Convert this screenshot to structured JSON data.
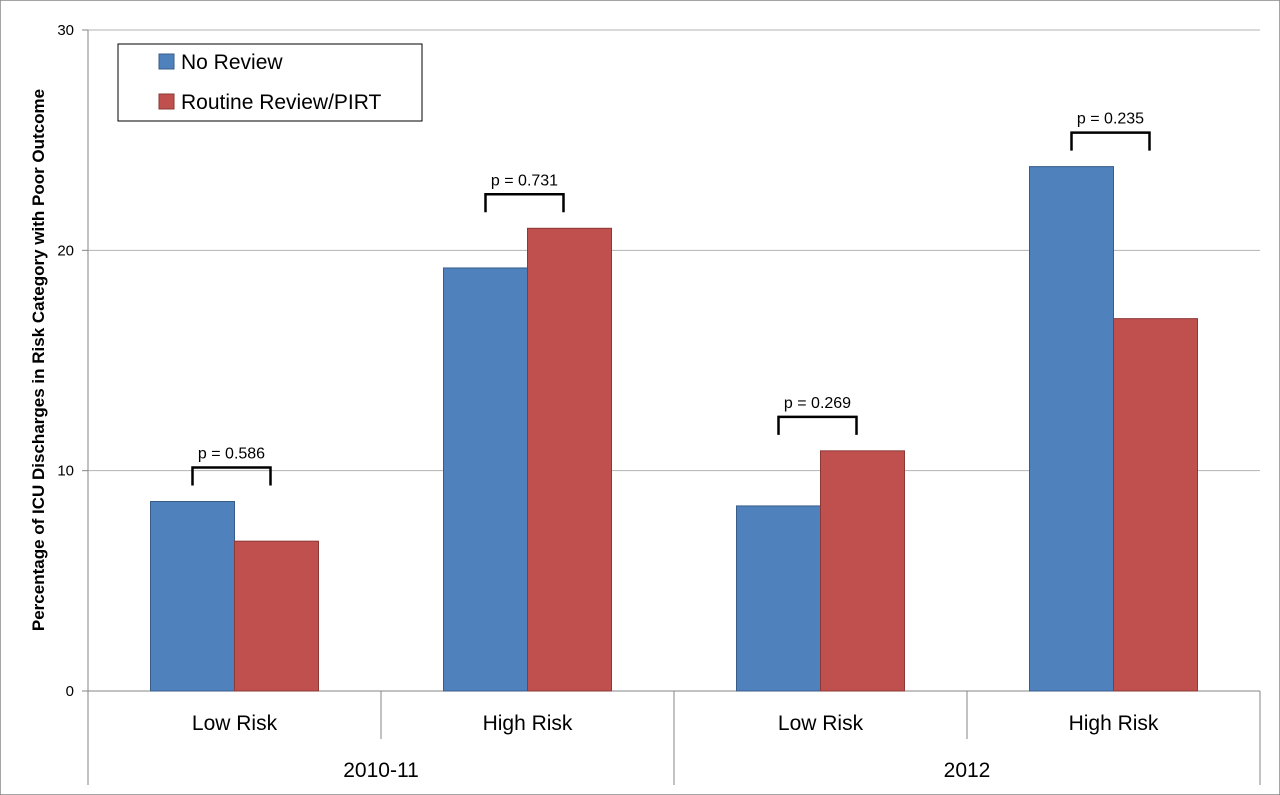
{
  "chart_data": {
    "type": "bar",
    "ylabel": "Percentage of ICU Discharges in Risk Category with Poor Outcome",
    "ylim": [
      0,
      30
    ],
    "yticks": [
      0,
      10,
      20,
      30
    ],
    "grid": true,
    "legend_position": "top-left",
    "groups": [
      "2010-11",
      "2012"
    ],
    "categories": [
      "Low Risk",
      "High Risk",
      "Low Risk",
      "High Risk"
    ],
    "category_group": [
      0,
      0,
      1,
      1
    ],
    "series": [
      {
        "name": "No Review",
        "color": "#4F81BD",
        "values": [
          8.6,
          19.2,
          8.4,
          23.8
        ]
      },
      {
        "name": "Routine Review/PIRT",
        "color": "#C0504D",
        "values": [
          6.8,
          21.0,
          10.9,
          16.9
        ]
      }
    ],
    "annotations": [
      "p = 0.586",
      "p = 0.731",
      "p = 0.269",
      "p = 0.235"
    ]
  }
}
